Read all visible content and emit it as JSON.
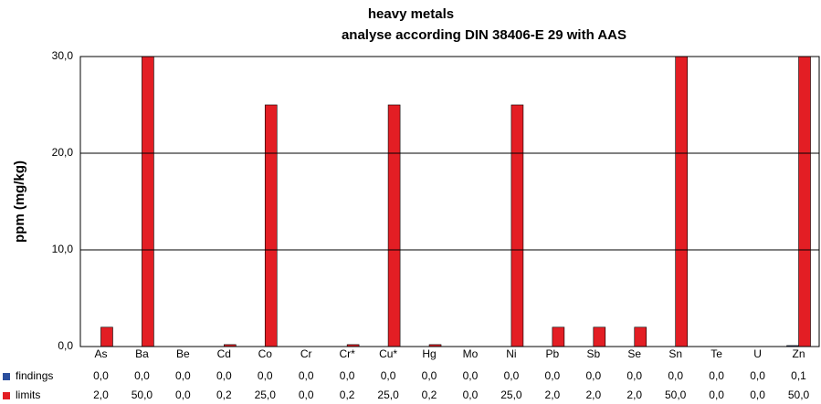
{
  "chart_data": {
    "type": "bar",
    "title": [
      "heavy metals",
      "analyse according DIN 38406-E 29 with AAS"
    ],
    "y_label": "ppm (mg/kg)",
    "categories": [
      "As",
      "Ba",
      "Be",
      "Cd",
      "Co",
      "Cr",
      "Cr*",
      "Cu*",
      "Hg",
      "Mo",
      "Ni",
      "Pb",
      "Sb",
      "Se",
      "Sn",
      "Te",
      "U",
      "Zn"
    ],
    "series": [
      {
        "name": "findings",
        "color": "#2b4f9e",
        "values": [
          0,
          0,
          0,
          0,
          0,
          0,
          0,
          0,
          0,
          0,
          0,
          0,
          0,
          0,
          0,
          0,
          0,
          0.1
        ],
        "value_labels": [
          "0,0",
          "0,0",
          "0,0",
          "0,0",
          "0,0",
          "0,0",
          "0,0",
          "0,0",
          "0,0",
          "0,0",
          "0,0",
          "0,0",
          "0,0",
          "0,0",
          "0,0",
          "0,0",
          "0,0",
          "0,1"
        ]
      },
      {
        "name": "limits",
        "color": "#e31e24",
        "values": [
          2,
          50,
          0,
          0.2,
          25,
          0,
          0.2,
          25,
          0.2,
          0,
          25,
          2,
          2,
          2,
          50,
          0,
          0,
          50
        ],
        "value_labels": [
          "2,0",
          "50,0",
          "0,0",
          "0,2",
          "25,0",
          "0,0",
          "0,2",
          "25,0",
          "0,2",
          "0,0",
          "25,0",
          "2,0",
          "2,0",
          "2,0",
          "50,0",
          "0,0",
          "0,0",
          "50,0"
        ]
      }
    ],
    "ylim": [
      0,
      30
    ],
    "yticks": [
      {
        "value": 0,
        "label": "0,0"
      },
      {
        "value": 10,
        "label": "10,0"
      },
      {
        "value": 20,
        "label": "20,0"
      },
      {
        "value": 30,
        "label": "30,0"
      }
    ],
    "grid": true
  }
}
